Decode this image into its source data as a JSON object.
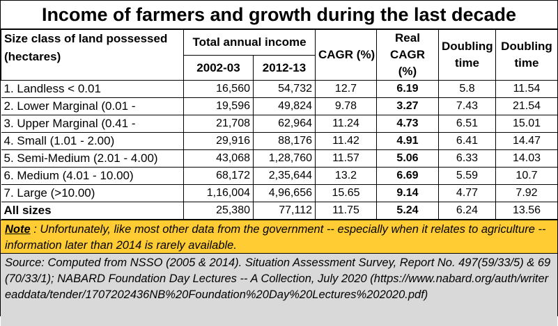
{
  "chart_data": {
    "type": "table",
    "title": "Income of farmers and growth during the last decade",
    "headers": {
      "size_class": "Size class of land possessed (hectares)",
      "total_income": "Total annual income",
      "year1": "2002-03",
      "year2": "2012-13",
      "cagr": "CAGR (%)",
      "real_cagr": "Real CAGR (%)",
      "doubling1": "Doubling time",
      "doubling2": "Doubling time"
    },
    "rows": [
      {
        "label": "1. Landless < 0.01",
        "y2002": "16,560",
        "y2012": "54,732",
        "cagr": "12.7",
        "real": "6.19",
        "d1": "5.8",
        "d2": "11.54"
      },
      {
        "label": "2. Lower Marginal (0.01 -",
        "y2002": "19,596",
        "y2012": "49,824",
        "cagr": "9.78",
        "real": "3.27",
        "d1": "7.43",
        "d2": "21.54"
      },
      {
        "label": "3. Upper Marginal (0.41 -",
        "y2002": "21,708",
        "y2012": "62,964",
        "cagr": "11.24",
        "real": "4.73",
        "d1": "6.51",
        "d2": "15.01"
      },
      {
        "label": "4. Small (1.01 - 2.00)",
        "y2002": "29,916",
        "y2012": "88,176",
        "cagr": "11.42",
        "real": "4.91",
        "d1": "6.41",
        "d2": "14.47"
      },
      {
        "label": "5. Semi-Medium (2.01 - 4.00)",
        "y2002": "43,068",
        "y2012": "1,28,760",
        "cagr": "11.57",
        "real": "5.06",
        "d1": "6.33",
        "d2": "14.03"
      },
      {
        "label": "6. Medium (4.01 - 10.00)",
        "y2002": "68,172",
        "y2012": "2,35,644",
        "cagr": "13.2",
        "real": "6.69",
        "d1": "5.59",
        "d2": "10.7"
      },
      {
        "label": "7. Large (>10.00)",
        "y2002": "1,16,004",
        "y2012": "4,96,656",
        "cagr": "15.65",
        "real": "9.14",
        "d1": "4.77",
        "d2": "7.92"
      }
    ],
    "total": {
      "label": "All sizes",
      "y2002": "25,380",
      "y2012": "77,112",
      "cagr": "11.75",
      "real": "5.24",
      "d1": "6.24",
      "d2": "13.56"
    }
  },
  "note": {
    "label": "Note",
    "text": " : Unfortunately, like most other data from the government -- especially when  it relates to agriculture --  information later than 2014 is rarely available."
  },
  "source": {
    "text": "Source: Computed from NSSO (2005 & 2014). Situation Assessment Survey, Report No. 497(59/33/5) & 69(70/33/1); NABARD Foundation Day Lectures -- A Collection, July 2020 (https://www.nabard.org/auth/writereaddata/tender/1707202436NB%20Foundation%20Day%20Lectures%202020.pdf)"
  },
  "colors": {
    "note_bg": "#ffcc33",
    "source_bg": "#d9d9d9"
  }
}
